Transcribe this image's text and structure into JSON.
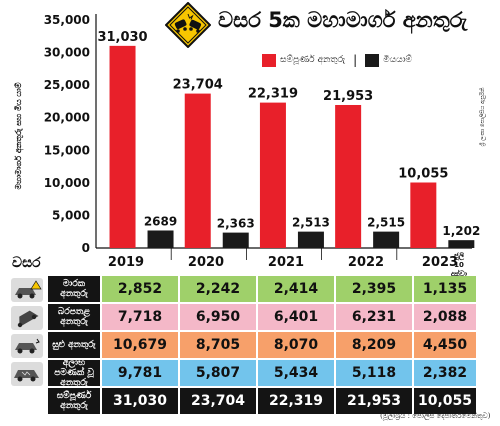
{
  "title": "වසර 5ක මහාමාර්ග අනතුරු",
  "legend": {
    "total_label": "සම්පූර්ණ අනතුරු",
    "fatal_label": "මියයාම්",
    "separator": "|",
    "total_color": "#e8202a",
    "fatal_color": "#1a1a1a"
  },
  "icon_name": "car-crash-warning-icon",
  "y_axis_label": "මහාමාර්ග අනතුරු සහ මිය යාම්",
  "source_note": "ශ්‍රී ලංකා පොලිසිය ඇසුරිනි",
  "chart_data": {
    "type": "bar",
    "categories": [
      "2019",
      "2020",
      "2021",
      "2022",
      "2023"
    ],
    "series": [
      {
        "name": "සම්පූර්ණ අනතුරු",
        "values": [
          31030,
          23704,
          22319,
          21953,
          10055
        ],
        "labels": [
          "31,030",
          "23,704",
          "22,319",
          "21,953",
          "10,055"
        ],
        "color": "#e8202a"
      },
      {
        "name": "මියයාම්",
        "values": [
          2689,
          2363,
          2513,
          2515,
          1202
        ],
        "labels": [
          "2689",
          "2,363",
          "2,513",
          "2,515",
          "1,202"
        ],
        "color": "#1a1a1a"
      }
    ],
    "ylim": [
      0,
      35000
    ],
    "yticks": [
      0,
      5000,
      10000,
      15000,
      20000,
      25000,
      30000,
      35000
    ],
    "ytick_labels": [
      "0",
      "5,000",
      "10,000",
      "15,000",
      "20,000",
      "25,000",
      "30,000",
      "35,000"
    ],
    "grid": false
  },
  "axis": {
    "year_label": "වසර",
    "years": [
      "2019",
      "2020",
      "2021",
      "2022",
      "2023"
    ],
    "note_2023": "ජූලි 10 දක්වා"
  },
  "table": {
    "rows": [
      {
        "label": "මාරක අනතුරු",
        "icon": "fatal-accident-icon",
        "values": [
          "2,852",
          "2,242",
          "2,414",
          "2,395",
          "1,135"
        ],
        "color": "#9fd06a"
      },
      {
        "label": "බරපතළ අනතුරු",
        "icon": "serious-injury-icon",
        "values": [
          "7,718",
          "6,950",
          "6,401",
          "6,231",
          "2,088"
        ],
        "color": "#f4b8c8"
      },
      {
        "label": "සුළු අනතුරු",
        "icon": "minor-accident-icon",
        "values": [
          "10,679",
          "8,705",
          "8,070",
          "8,209",
          "4,450"
        ],
        "color": "#f7a06a"
      },
      {
        "label": "අලාභ පමණක් වූ අනතුරු",
        "icon": "damage-only-icon",
        "values": [
          "9,781",
          "5,807",
          "5,434",
          "5,118",
          "2,382"
        ],
        "color": "#72c4ec"
      }
    ],
    "total": {
      "label": "සම්පූර්ණ අනතුරු",
      "values": [
        "31,030",
        "23,704",
        "22,319",
        "21,953",
        "10,055"
      ]
    }
  },
  "credit": "(මූලාශ්‍රය : පොලිස් දෙපාර්තමේන්තුව)"
}
